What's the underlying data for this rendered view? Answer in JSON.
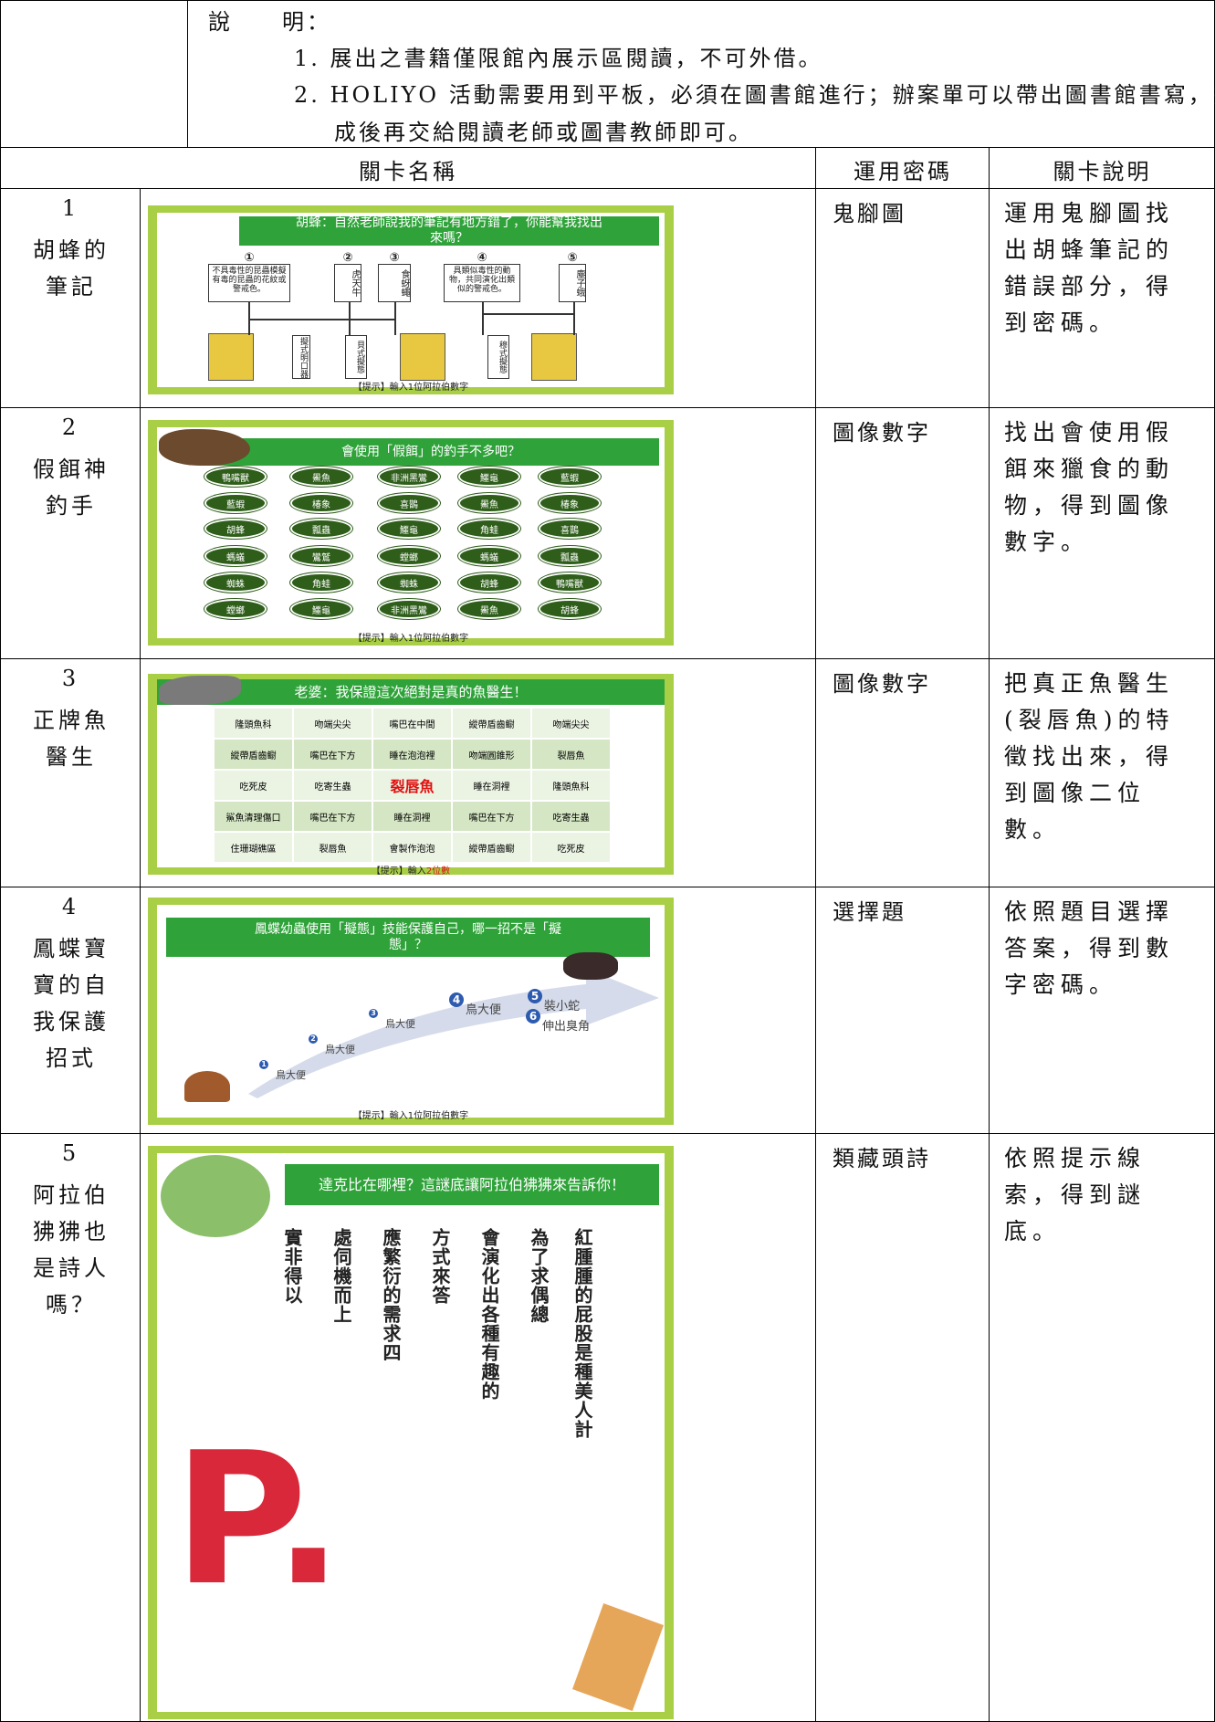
{
  "notes": {
    "label": "說　　明：",
    "items": [
      "1. 展出之書籍僅限館內展示區閱讀，不可外借。",
      "2. HOLIYO 活動需要用到平板，必須在圖書館進行；辦案單可以帶出圖書館書寫，完成後再交給閱讀老師或圖書教師即可。"
    ]
  },
  "table": {
    "headers": [
      "關卡名稱",
      "運用密碼",
      "關卡說明"
    ],
    "rows": [
      {
        "number": "1",
        "name": "胡蜂的筆記",
        "code": "鬼腳圖",
        "description": "運用鬼腳圖找出胡蜂筆記的錯誤部分，得到密碼。",
        "slide": {
          "title": "胡蜂：自然老師說我的筆記有地方錯了，你能幫我找出來嗎？",
          "boxes": [
            {
              "mark": "①",
              "text": "不具毒性的昆蟲模擬有毒的昆蟲的花紋或警戒色。"
            },
            {
              "mark": "②",
              "text": "虎天牛"
            },
            {
              "mark": "③",
              "text": "食蚜蠅"
            },
            {
              "mark": "④",
              "text": "具類似毒性的動物，共同演化出類似的警戒色。"
            },
            {
              "mark": "⑤",
              "text": "塵子蛾"
            }
          ],
          "labels": [
            "擬式明口器",
            "貝式擬態",
            "穆式擬態"
          ],
          "hint": "【提示】輸入1位阿拉伯數字"
        }
      },
      {
        "number": "2",
        "name": "假餌神釣手",
        "code": "圖像數字",
        "description": "找出會使用假餌來獵食的動物，得到圖像數字。",
        "slide": {
          "title": "會使用「假餌」的釣手不多吧？",
          "ovals": [
            [
              "鴨嘴獸",
              "鱟魚",
              "非洲黑鸞",
              "鱷龜",
              "藍蝦"
            ],
            [
              "藍蝦",
              "椿象",
              "喜鵲",
              "鱟魚",
              "椿象"
            ],
            [
              "胡蜂",
              "瓢蟲",
              "鱷龜",
              "角蛙",
              "喜鵲"
            ],
            [
              "螞蟻",
              "鸞鷲",
              "螳螂",
              "螞蟻",
              "瓢蟲"
            ],
            [
              "蜘蛛",
              "角蛙",
              "蜘蛛",
              "胡蜂",
              "鴨嘴獸"
            ],
            [
              "螳螂",
              "鱷龜",
              "非洲黑鸞",
              "鱟魚",
              "胡蜂"
            ]
          ],
          "hint": "【提示】輸入1位阿拉伯數字"
        }
      },
      {
        "number": "3",
        "name": "正牌魚醫生",
        "code": "圖像數字",
        "description": "把真正魚醫生(裂唇魚)的特徵找出來，得到圖像二位數。",
        "slide": {
          "title": "老婆：我保證這次絕對是真的魚醫生！",
          "grid": [
            [
              "隆頭魚科",
              "吻端尖尖",
              "嘴巴在中間",
              "縱帶盾齒鳚",
              "吻端尖尖"
            ],
            [
              "縱帶盾齒鳚",
              "嘴巴在下方",
              "睡在泡泡裡",
              "吻端圓錐形",
              "裂唇魚"
            ],
            [
              "吃死皮",
              "吃寄生蟲",
              "裂唇魚",
              "睡在洞裡",
              "隆頭魚科"
            ],
            [
              "鯊魚清理傷口",
              "嘴巴在下方",
              "睡在洞裡",
              "嘴巴在下方",
              "吃寄生蟲"
            ],
            [
              "住珊瑚礁區",
              "裂唇魚",
              "會製作泡泡",
              "縱帶盾齒鳚",
              "吃死皮"
            ]
          ],
          "highlight": "#e01010",
          "hint": "【提示】輸入",
          "hint_red": "2位數"
        }
      },
      {
        "number": "4",
        "name": "鳳蝶寶寶的自我保護招式",
        "code": "選擇題",
        "description": "依照題目選擇答案，得到數字密碼。",
        "slide": {
          "title": "鳳蝶幼蟲使用「擬態」技能保護自己，哪一招不是「擬態」？",
          "options": [
            {
              "mark": "1",
              "text": "鳥大便"
            },
            {
              "mark": "2",
              "text": "鳥大便"
            },
            {
              "mark": "3",
              "text": "鳥大便"
            },
            {
              "mark": "4",
              "text": "鳥大便"
            },
            {
              "mark": "5",
              "text": "裝小蛇"
            },
            {
              "mark": "6",
              "text": "伸出臭角"
            }
          ],
          "hint": "【提示】輸入1位阿拉伯數字"
        }
      },
      {
        "number": "5",
        "name": "阿拉伯狒狒也是詩人嗎？",
        "code": "類藏頭詩",
        "description": "依照提示線索，得到謎底。",
        "slide": {
          "title": "達克比在哪裡？這謎底讓阿拉伯狒狒來告訴你！",
          "columns": [
            "實非得以",
            "處伺機而上",
            "應繁衍的需求四",
            "方式來答",
            "會演化出各種有趣的",
            "為了求偶總",
            "紅腫腫的屁股是種美人計"
          ],
          "logo": "P."
        }
      }
    ]
  }
}
